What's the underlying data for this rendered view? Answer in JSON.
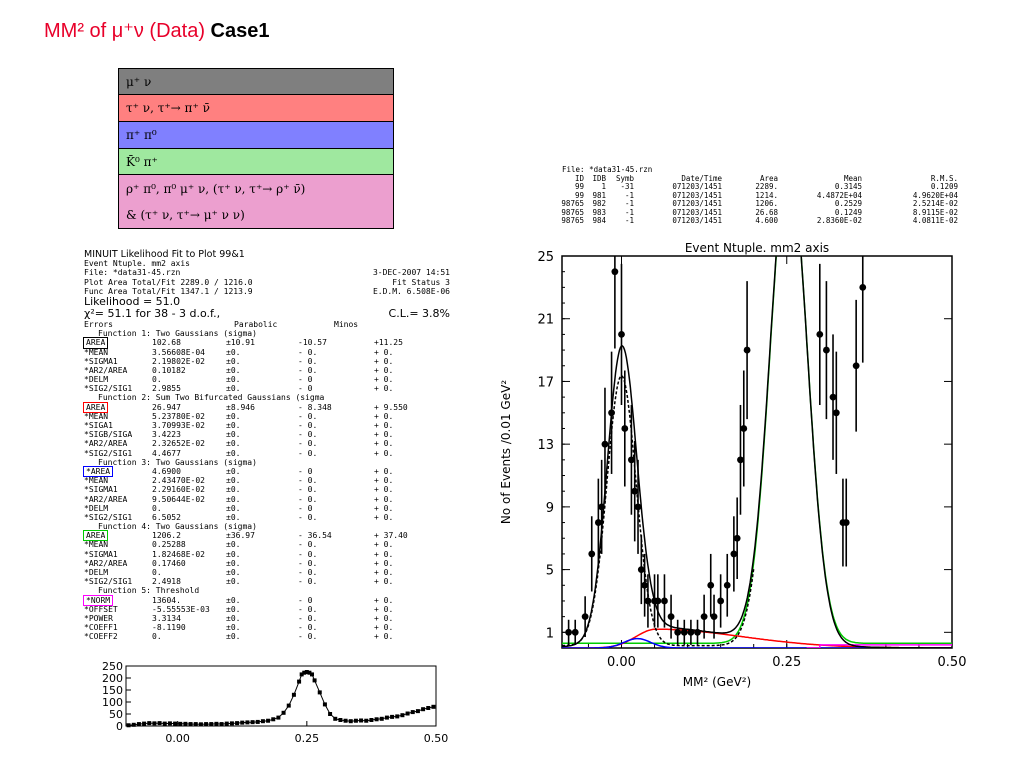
{
  "title": {
    "main": "MM² of μ⁺ν (Data)",
    "case": "Case1"
  },
  "legend": [
    {
      "label": "μ⁺ ν",
      "color": "#7f7f7f"
    },
    {
      "label": "τ⁺ ν, τ⁺→ π⁺ ν̄",
      "color": "#ff8080"
    },
    {
      "label": "π⁺ π⁰",
      "color": "#8080ff"
    },
    {
      "label": "K̄⁰ π⁺",
      "color": "#9fe89f"
    },
    {
      "label": "ρ⁺ π⁰,  π⁰ μ⁺ ν, (τ⁺ ν, τ⁺→ ρ⁺ ν̄)",
      "color": "#ec9fcf"
    },
    {
      "label": "&   (τ⁺ ν, τ⁺→ μ⁺ ν ν)",
      "color": "#ec9fcf"
    }
  ],
  "fit": {
    "header": "MINUIT Likelihood Fit to Plot     99&1",
    "ntuple": "Event Ntuple. mm2 axis",
    "file": "File: *data31-45.rzn",
    "date": "3-DEC-2007 14:51",
    "plot_area": "Plot Area Total/Fit   2289.0 / 1216.0",
    "fit_status": "Fit Status  3",
    "func_area": "Func Area Total/Fit  1347.1 / 1213.9",
    "edm": "E.D.M. 6.508E-06",
    "likelihood": "Likelihood =    51.0",
    "chi2": "χ²=   51.1 for  38 -  3 d.o.f.,",
    "cl": "C.L.=  3.8%",
    "col_headers": [
      "Errors",
      "Parabolic",
      "Minos"
    ],
    "rows": [
      {
        "kind": "fn",
        "text": "Function  1: Two Gaussians (sigma)"
      },
      {
        "kind": "p",
        "name": "AREA",
        "box": "#000000",
        "v": "102.68",
        "e": "±10.91",
        "m1": "-10.57",
        "m2": "+11.25"
      },
      {
        "kind": "p",
        "name": "*MEAN",
        "v": "3.56608E-04",
        "e": "±0.",
        "m1": "- 0.",
        "m2": "+ 0."
      },
      {
        "kind": "p",
        "name": "*SIGMA1",
        "v": "2.19802E-02",
        "e": "±0.",
        "m1": "- 0.",
        "m2": "+ 0."
      },
      {
        "kind": "p",
        "name": "*AR2/AREA",
        "v": "0.10182",
        "e": "±0.",
        "m1": "- 0.",
        "m2": "+ 0."
      },
      {
        "kind": "p",
        "name": "*DELM",
        "v": "0.",
        "e": "±0.",
        "m1": "- 0",
        "m2": "+ 0."
      },
      {
        "kind": "p",
        "name": "*SIG2/SIG1",
        "v": "2.9855",
        "e": "±0.",
        "m1": "- 0",
        "m2": "+ 0."
      },
      {
        "kind": "fn",
        "text": "Function  2: Sum Two Bifurcated Gaussians (sigma"
      },
      {
        "kind": "p",
        "name": "AREA",
        "box": "#ff0000",
        "v": "26.947",
        "e": "±8.946",
        "m1": "- 8.348",
        "m2": "+ 9.550"
      },
      {
        "kind": "p",
        "name": "*MEAN",
        "v": "5.23780E-02",
        "e": "±0.",
        "m1": "- 0.",
        "m2": "+ 0."
      },
      {
        "kind": "p",
        "name": "*SIGA1",
        "v": "3.70993E-02",
        "e": "±0.",
        "m1": "- 0.",
        "m2": "+ 0."
      },
      {
        "kind": "p",
        "name": "*SIGB/SIGA",
        "v": "3.4223",
        "e": "±0.",
        "m1": "- 0.",
        "m2": "+ 0."
      },
      {
        "kind": "p",
        "name": "*AR2/AREA",
        "v": "2.32652E-02",
        "e": "±0.",
        "m1": "- 0.",
        "m2": "+ 0."
      },
      {
        "kind": "p",
        "name": "*SIG2/SIG1",
        "v": "4.4677",
        "e": "±0.",
        "m1": "- 0.",
        "m2": "+ 0."
      },
      {
        "kind": "fn",
        "text": "Function  3: Two Gaussians (sigma)"
      },
      {
        "kind": "p",
        "name": "*AREA",
        "box": "#0000ff",
        "v": "4.6900",
        "e": "±0.",
        "m1": "- 0",
        "m2": "+ 0."
      },
      {
        "kind": "p",
        "name": "*MEAN",
        "v": "2.43470E-02",
        "e": "±0.",
        "m1": "- 0.",
        "m2": "+ 0."
      },
      {
        "kind": "p",
        "name": "*SIGMA1",
        "v": "2.29160E-02",
        "e": "±0.",
        "m1": "- 0.",
        "m2": "+ 0."
      },
      {
        "kind": "p",
        "name": "*AR2/AREA",
        "v": "9.50644E-02",
        "e": "±0.",
        "m1": "- 0.",
        "m2": "+ 0."
      },
      {
        "kind": "p",
        "name": "*DELM",
        "v": "0.",
        "e": "±0.",
        "m1": "- 0",
        "m2": "+ 0."
      },
      {
        "kind": "p",
        "name": "*SIG2/SIG1",
        "v": "6.5052",
        "e": "±0.",
        "m1": "- 0.",
        "m2": "+ 0."
      },
      {
        "kind": "fn",
        "text": "Function  4: Two Gaussians (sigma)"
      },
      {
        "kind": "p",
        "name": "AREA",
        "box": "#00cc00",
        "v": "1206.2",
        "e": "±36.97",
        "m1": "- 36.54",
        "m2": "+ 37.40"
      },
      {
        "kind": "p",
        "name": "*MEAN",
        "v": "0.25288",
        "e": "±0.",
        "m1": "- 0.",
        "m2": "+ 0."
      },
      {
        "kind": "p",
        "name": "*SIGMA1",
        "v": "1.82468E-02",
        "e": "±0.",
        "m1": "- 0.",
        "m2": "+ 0."
      },
      {
        "kind": "p",
        "name": "*AR2/AREA",
        "v": "0.17460",
        "e": "±0.",
        "m1": "- 0.",
        "m2": "+ 0."
      },
      {
        "kind": "p",
        "name": "*DELM",
        "v": "0.",
        "e": "±0.",
        "m1": "- 0.",
        "m2": "+ 0."
      },
      {
        "kind": "p",
        "name": "*SIG2/SIG1",
        "v": "2.4918",
        "e": "±0.",
        "m1": "- 0.",
        "m2": "+ 0."
      },
      {
        "kind": "fn",
        "text": "Function  5: Threshold"
      },
      {
        "kind": "p",
        "name": "*NORM",
        "box": "#ff00ff",
        "v": "13604.",
        "e": "±0.",
        "m1": "- 0",
        "m2": "+ 0."
      },
      {
        "kind": "p",
        "name": "*OFFSET",
        "v": "-5.55553E-03",
        "e": "±0.",
        "m1": "- 0.",
        "m2": "+ 0."
      },
      {
        "kind": "p",
        "name": "*POWER",
        "v": "3.3134",
        "e": "±0.",
        "m1": "- 0.",
        "m2": "+ 0."
      },
      {
        "kind": "p",
        "name": "*COEFF1",
        "v": "-8.1190",
        "e": "±0.",
        "m1": "- 0.",
        "m2": "+ 0."
      },
      {
        "kind": "p",
        "name": "*COEFF2",
        "v": "0.",
        "e": "±0.",
        "m1": "- 0.",
        "m2": "+ 0."
      }
    ]
  },
  "stats": {
    "file": "File: *data31-45.rzn",
    "headers": [
      "ID",
      "IDB",
      "Symb",
      "Date/Time",
      "Area",
      "Mean",
      "R.M.S."
    ],
    "rows": [
      [
        "99",
        "1",
        "-31",
        "071203/1451",
        "2289.",
        "0.3145",
        "0.1209"
      ],
      [
        "99",
        "981",
        "-1",
        "071203/1451",
        "1214.",
        "4.4872E+04",
        "4.9620E+04"
      ],
      [
        "98765",
        "982",
        "-1",
        "071203/1451",
        "1206.",
        "0.2529",
        "2.5214E-02"
      ],
      [
        "98765",
        "983",
        "-1",
        "071203/1451",
        "26.68",
        "0.1249",
        "8.9115E-02"
      ],
      [
        "98765",
        "984",
        "-1",
        "071203/1451",
        "4.600",
        "2.8360E-02",
        "4.0811E-02"
      ]
    ]
  },
  "chart_data": [
    {
      "type": "scatter",
      "title": "Event Ntuple. mm2 axis",
      "xlabel": "MM² (GeV²)",
      "ylabel": "No of Events /0.01 GeV²",
      "xlim": [
        -0.09,
        0.5
      ],
      "ylim": [
        0,
        25
      ],
      "xticks": [
        "0.00",
        "0.25",
        "0.50"
      ],
      "yticks": [
        "1",
        "5",
        "9",
        "13",
        "17",
        "21",
        "25"
      ],
      "points": [
        {
          "x": -0.08,
          "y": 1,
          "e": 0.8
        },
        {
          "x": -0.07,
          "y": 1,
          "e": 0.8
        },
        {
          "x": -0.055,
          "y": 2,
          "e": 1.3
        },
        {
          "x": -0.045,
          "y": 6,
          "e": 2.4
        },
        {
          "x": -0.035,
          "y": 8,
          "e": 2.8
        },
        {
          "x": -0.03,
          "y": 9,
          "e": 3.0
        },
        {
          "x": -0.025,
          "y": 13,
          "e": 3.6
        },
        {
          "x": -0.015,
          "y": 15,
          "e": 3.9
        },
        {
          "x": -0.01,
          "y": 24,
          "e": 4.9
        },
        {
          "x": 0.0,
          "y": 20,
          "e": 4.5
        },
        {
          "x": 0.005,
          "y": 14,
          "e": 3.7
        },
        {
          "x": 0.015,
          "y": 12,
          "e": 3.5
        },
        {
          "x": 0.02,
          "y": 10,
          "e": 3.2
        },
        {
          "x": 0.025,
          "y": 9,
          "e": 3.0
        },
        {
          "x": 0.03,
          "y": 5,
          "e": 2.2
        },
        {
          "x": 0.035,
          "y": 4,
          "e": 2.0
        },
        {
          "x": 0.04,
          "y": 3,
          "e": 1.7
        },
        {
          "x": 0.05,
          "y": 3,
          "e": 1.7
        },
        {
          "x": 0.055,
          "y": 3,
          "e": 1.7
        },
        {
          "x": 0.065,
          "y": 3,
          "e": 1.7
        },
        {
          "x": 0.075,
          "y": 2,
          "e": 1.4
        },
        {
          "x": 0.085,
          "y": 1,
          "e": 0.8
        },
        {
          "x": 0.095,
          "y": 1,
          "e": 0.8
        },
        {
          "x": 0.105,
          "y": 1,
          "e": 0.8
        },
        {
          "x": 0.115,
          "y": 1,
          "e": 0.8
        },
        {
          "x": 0.125,
          "y": 2,
          "e": 1.4
        },
        {
          "x": 0.135,
          "y": 4,
          "e": 2.0
        },
        {
          "x": 0.14,
          "y": 2,
          "e": 1.4
        },
        {
          "x": 0.15,
          "y": 3,
          "e": 1.7
        },
        {
          "x": 0.16,
          "y": 4,
          "e": 2.0
        },
        {
          "x": 0.17,
          "y": 6,
          "e": 2.4
        },
        {
          "x": 0.175,
          "y": 7,
          "e": 2.6
        },
        {
          "x": 0.18,
          "y": 12,
          "e": 3.5
        },
        {
          "x": 0.185,
          "y": 14,
          "e": 3.7
        },
        {
          "x": 0.19,
          "y": 19,
          "e": 4.4
        },
        {
          "x": 0.3,
          "y": 20,
          "e": 4.5
        },
        {
          "x": 0.31,
          "y": 19,
          "e": 4.4
        },
        {
          "x": 0.32,
          "y": 16,
          "e": 4.0
        },
        {
          "x": 0.325,
          "y": 15,
          "e": 3.9
        },
        {
          "x": 0.335,
          "y": 8,
          "e": 2.8
        },
        {
          "x": 0.34,
          "y": 8,
          "e": 2.8
        },
        {
          "x": 0.355,
          "y": 18,
          "e": 4.2
        },
        {
          "x": 0.365,
          "y": 23,
          "e": 4.8
        }
      ],
      "curves": {
        "total_peak": {
          "mean": 0.0,
          "sigma": 0.022,
          "amp": 18.5,
          "color": "#000000"
        },
        "red_bifurcated": {
          "mean": 0.052,
          "amp": 1.2,
          "color": "#ff0000"
        },
        "blue_gauss": {
          "mean": 0.024,
          "amp": 0.6,
          "color": "#0000ff"
        },
        "green_gauss": {
          "mean": 0.253,
          "sigma": 0.018,
          "color": "#00cc00"
        },
        "magenta_threshold": {
          "offset": -0.0056,
          "color": "#ff00ff"
        }
      }
    },
    {
      "type": "scatter",
      "title": "",
      "xlim": [
        -0.1,
        0.5
      ],
      "ylim": [
        0,
        250
      ],
      "xticks": [
        "0.00",
        "0.25",
        "0.50"
      ],
      "yticks": [
        "0",
        "50",
        "100",
        "150",
        "200",
        "250"
      ],
      "points": [
        {
          "x": -0.095,
          "y": 3
        },
        {
          "x": -0.085,
          "y": 5
        },
        {
          "x": -0.075,
          "y": 8
        },
        {
          "x": -0.065,
          "y": 10
        },
        {
          "x": -0.055,
          "y": 12
        },
        {
          "x": -0.045,
          "y": 11
        },
        {
          "x": -0.035,
          "y": 12
        },
        {
          "x": -0.025,
          "y": 10
        },
        {
          "x": -0.015,
          "y": 11
        },
        {
          "x": -0.005,
          "y": 10
        },
        {
          "x": 0.005,
          "y": 9
        },
        {
          "x": 0.015,
          "y": 9
        },
        {
          "x": 0.025,
          "y": 8
        },
        {
          "x": 0.035,
          "y": 8
        },
        {
          "x": 0.045,
          "y": 7
        },
        {
          "x": 0.055,
          "y": 8
        },
        {
          "x": 0.065,
          "y": 8
        },
        {
          "x": 0.075,
          "y": 9
        },
        {
          "x": 0.085,
          "y": 8
        },
        {
          "x": 0.095,
          "y": 10
        },
        {
          "x": 0.105,
          "y": 11
        },
        {
          "x": 0.115,
          "y": 12
        },
        {
          "x": 0.125,
          "y": 14
        },
        {
          "x": 0.135,
          "y": 15
        },
        {
          "x": 0.145,
          "y": 16
        },
        {
          "x": 0.155,
          "y": 17
        },
        {
          "x": 0.165,
          "y": 20
        },
        {
          "x": 0.175,
          "y": 22
        },
        {
          "x": 0.185,
          "y": 28
        },
        {
          "x": 0.195,
          "y": 35
        },
        {
          "x": 0.205,
          "y": 55
        },
        {
          "x": 0.215,
          "y": 85
        },
        {
          "x": 0.225,
          "y": 130
        },
        {
          "x": 0.235,
          "y": 185
        },
        {
          "x": 0.24,
          "y": 215
        },
        {
          "x": 0.245,
          "y": 222
        },
        {
          "x": 0.25,
          "y": 225
        },
        {
          "x": 0.255,
          "y": 222
        },
        {
          "x": 0.26,
          "y": 215
        },
        {
          "x": 0.265,
          "y": 190
        },
        {
          "x": 0.275,
          "y": 140
        },
        {
          "x": 0.285,
          "y": 90
        },
        {
          "x": 0.295,
          "y": 50
        },
        {
          "x": 0.305,
          "y": 30
        },
        {
          "x": 0.315,
          "y": 25
        },
        {
          "x": 0.325,
          "y": 22
        },
        {
          "x": 0.335,
          "y": 20
        },
        {
          "x": 0.345,
          "y": 22
        },
        {
          "x": 0.355,
          "y": 23
        },
        {
          "x": 0.365,
          "y": 22
        },
        {
          "x": 0.375,
          "y": 25
        },
        {
          "x": 0.385,
          "y": 28
        },
        {
          "x": 0.395,
          "y": 30
        },
        {
          "x": 0.405,
          "y": 35
        },
        {
          "x": 0.415,
          "y": 38
        },
        {
          "x": 0.425,
          "y": 40
        },
        {
          "x": 0.435,
          "y": 45
        },
        {
          "x": 0.445,
          "y": 52
        },
        {
          "x": 0.455,
          "y": 58
        },
        {
          "x": 0.465,
          "y": 62
        },
        {
          "x": 0.475,
          "y": 70
        },
        {
          "x": 0.485,
          "y": 75
        },
        {
          "x": 0.495,
          "y": 80
        }
      ]
    }
  ]
}
